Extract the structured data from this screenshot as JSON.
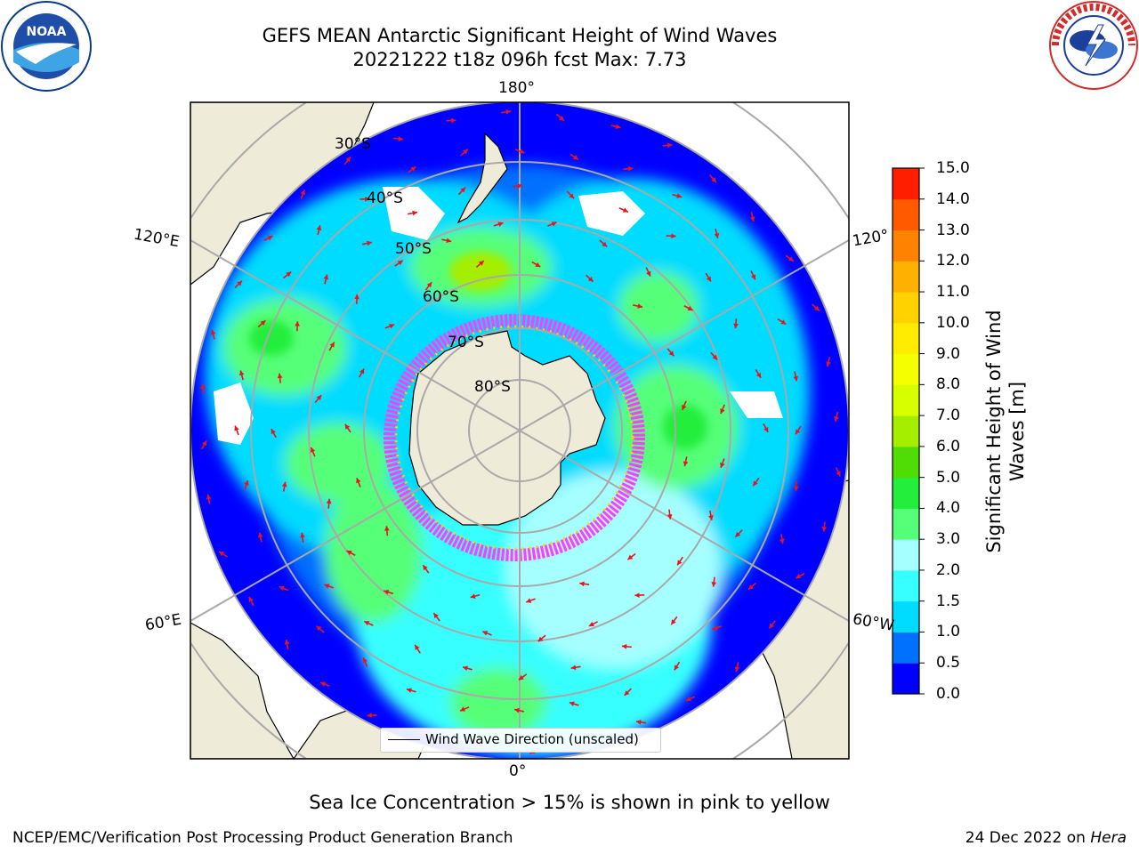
{
  "header": {
    "title_line1": "GEFS MEAN Antarctic Significant Height of Wind Waves",
    "title_line2": "20221222 t18z 096h fcst   Max: 7.73"
  },
  "logos": {
    "left": "noaa-logo",
    "right": "national-weather-service-logo",
    "left_text": "NOAA",
    "right_text": "NATIONAL WEATHER SERVICE"
  },
  "map": {
    "projection": "south-polar-stereographic",
    "longitude_labels": {
      "top": "180°",
      "bottom": "0°",
      "upper_left": "120°E",
      "upper_right": "120°",
      "lower_left": "60°E",
      "lower_right": "60°W"
    },
    "latitude_labels": [
      "30°S",
      "40°S",
      "50°S",
      "60°S",
      "70°S",
      "80°S"
    ],
    "legend_label": "Wind Wave Direction (unscaled)",
    "colors": {
      "land": "#efebd9",
      "arrows": "#e8141c",
      "sea_ice": "#ff3cff"
    }
  },
  "colorbar": {
    "label": "Significant Height of Wind Waves [m]",
    "ticks": [
      "0.0",
      "0.5",
      "1.0",
      "1.5",
      "2.0",
      "3.0",
      "4.0",
      "5.0",
      "6.0",
      "7.0",
      "8.0",
      "9.0",
      "10.0",
      "11.0",
      "12.0",
      "13.0",
      "14.0",
      "15.0"
    ],
    "colors": [
      "#0000ff",
      "#0070ff",
      "#00dcff",
      "#38ffff",
      "#a6ffff",
      "#56ff78",
      "#23ee3b",
      "#50dc05",
      "#a6ee00",
      "#d7ff00",
      "#f5ff00",
      "#ffec00",
      "#ffd200",
      "#ffb000",
      "#ff8200",
      "#ff5a00",
      "#ff1e00"
    ]
  },
  "subtitle": "Sea Ice Concentration > 15% is shown in pink to yellow",
  "footer": {
    "left": "NCEP/EMC/Verification Post Processing Product Generation Branch",
    "right_prefix": "24 Dec 2022 on ",
    "right_host": "Hera"
  }
}
